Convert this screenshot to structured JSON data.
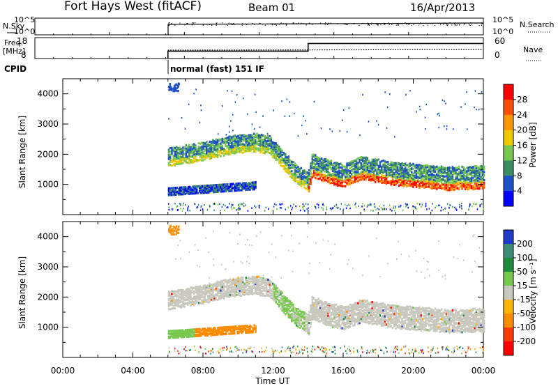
{
  "header": {
    "station": "Fort Hays West (fitACF)",
    "beam": "Beam 01",
    "date": "16/Apr/2013"
  },
  "strips": {
    "nsky_label": "N.Sky",
    "nsky_ticks": [
      "10^5",
      "10^0"
    ],
    "nsearch_label": "N.Search",
    "nsearch_ticks": [
      "10^5",
      "10^0"
    ],
    "freq_label": "Freq.",
    "freq_unit": "[MHz]",
    "freq_ticks": [
      "18",
      "8"
    ],
    "nave_label": "Nave",
    "nave_ticks": [
      "60",
      "0"
    ],
    "cpid_label": "CPID",
    "cpid_value": "normal (fast) 151 IF"
  },
  "panels": {
    "ylabel": "Slant Range [km]",
    "yticks": [
      "4000",
      "3000",
      "2000",
      "1000"
    ],
    "xticks": [
      "00:00",
      "04:00",
      "08:00",
      "12:00",
      "16:00",
      "20:00",
      "00:00"
    ],
    "xlabel": "Time UT"
  },
  "colorbars": {
    "power": {
      "title": "Power [dB]",
      "ticks": [
        "28",
        "24",
        "20",
        "16",
        "12",
        "8",
        "4"
      ],
      "colors": [
        "#ff0000",
        "#ff5000",
        "#ff9600",
        "#f0c800",
        "#78c850",
        "#3c8c64",
        "#1e50c8",
        "#0000ff"
      ]
    },
    "velocity": {
      "title": "Velocity [m s⁻¹]",
      "ticks": [
        "200",
        "100",
        "50",
        "15",
        "-15",
        "-50",
        "-100",
        "-200"
      ],
      "colors": [
        "#1e3cc8",
        "#3c8c78",
        "#1e8c3c",
        "#78c850",
        "#c8c8be",
        "#ffb400",
        "#ff8c00",
        "#ff3c00",
        "#ff0000"
      ]
    }
  },
  "chart_data": {
    "type": "heatmap",
    "title": "Fort Hays West (fitACF)",
    "xlabel": "Time UT",
    "ylabel": "Slant Range [km]",
    "x_range_hours": [
      0,
      24
    ],
    "y_range_km": [
      0,
      4500
    ],
    "data_start_hour": 6.0,
    "frequency_mhz": [
      {
        "t0": 6.0,
        "t1": 14.0,
        "value": 11
      },
      {
        "t0": 14.0,
        "t1": 24.0,
        "value": 16
      }
    ],
    "backscatter_band_center_km": [
      [
        6.0,
        1950
      ],
      [
        7.0,
        2050
      ],
      [
        8.0,
        2150
      ],
      [
        9.0,
        2300
      ],
      [
        10.0,
        2400
      ],
      [
        11.0,
        2450
      ],
      [
        11.8,
        2350
      ],
      [
        12.5,
        1900
      ],
      [
        13.2,
        1450
      ],
      [
        14.0,
        1150
      ],
      [
        14.2,
        1700
      ],
      [
        15.0,
        1500
      ],
      [
        16.0,
        1350
      ],
      [
        17.0,
        1600
      ],
      [
        18.0,
        1500
      ],
      [
        19.0,
        1400
      ],
      [
        20.0,
        1350
      ],
      [
        21.0,
        1300
      ],
      [
        22.0,
        1250
      ],
      [
        24.0,
        1300
      ]
    ],
    "features": [
      {
        "name": "upper-band",
        "t0": 6.0,
        "t1": 24.0,
        "range_km": "1000-2500",
        "power_db": "8-28",
        "velocity": "-15 to 15"
      },
      {
        "name": "lower-band",
        "t0": 6.0,
        "t1": 11.0,
        "range_km": "700-1000",
        "power_db": "4-12",
        "velocity": "-100 to 50"
      },
      {
        "name": "high-patch",
        "t0": 6.0,
        "t1": 6.6,
        "range_km": "4100-4400",
        "velocity": "-50"
      }
    ]
  }
}
